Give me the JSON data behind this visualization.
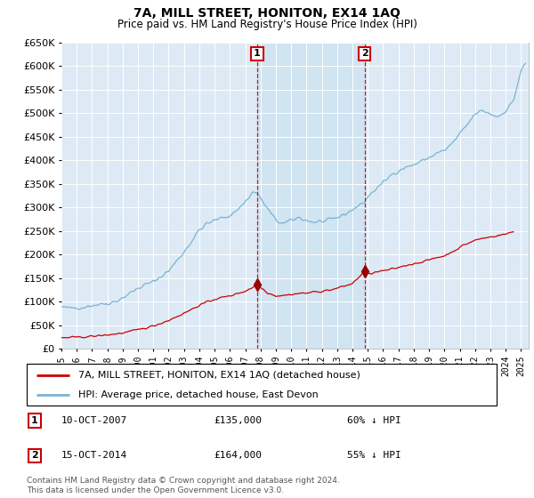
{
  "title": "7A, MILL STREET, HONITON, EX14 1AQ",
  "subtitle": "Price paid vs. HM Land Registry's House Price Index (HPI)",
  "legend_line1": "7A, MILL STREET, HONITON, EX14 1AQ (detached house)",
  "legend_line2": "HPI: Average price, detached house, East Devon",
  "footnote": "Contains HM Land Registry data © Crown copyright and database right 2024.\nThis data is licensed under the Open Government Licence v3.0.",
  "sales": [
    {
      "label": "1",
      "date": "10-OCT-2007",
      "price": 135000,
      "pct": "60%",
      "year": 2007.78
    },
    {
      "label": "2",
      "date": "15-OCT-2014",
      "price": 164000,
      "pct": "55%",
      "year": 2014.79
    }
  ],
  "hpi_color": "#7ab3d4",
  "hpi_shade_color": "#d0e4f2",
  "price_color": "#cc0000",
  "sale_marker_color": "#990000",
  "vline_color": "#cc0000",
  "background_color": "#ddeaf5",
  "ylim": [
    0,
    650000
  ],
  "xlim_start": 1995.0,
  "xlim_end": 2025.5,
  "xtick_years": [
    1995,
    1996,
    1997,
    1998,
    1999,
    2000,
    2001,
    2002,
    2003,
    2004,
    2005,
    2006,
    2007,
    2008,
    2009,
    2010,
    2011,
    2012,
    2013,
    2014,
    2015,
    2016,
    2017,
    2018,
    2019,
    2020,
    2021,
    2022,
    2023,
    2024,
    2025
  ],
  "ytick_values": [
    0,
    50000,
    100000,
    150000,
    200000,
    250000,
    300000,
    350000,
    400000,
    450000,
    500000,
    550000,
    600000,
    650000
  ]
}
